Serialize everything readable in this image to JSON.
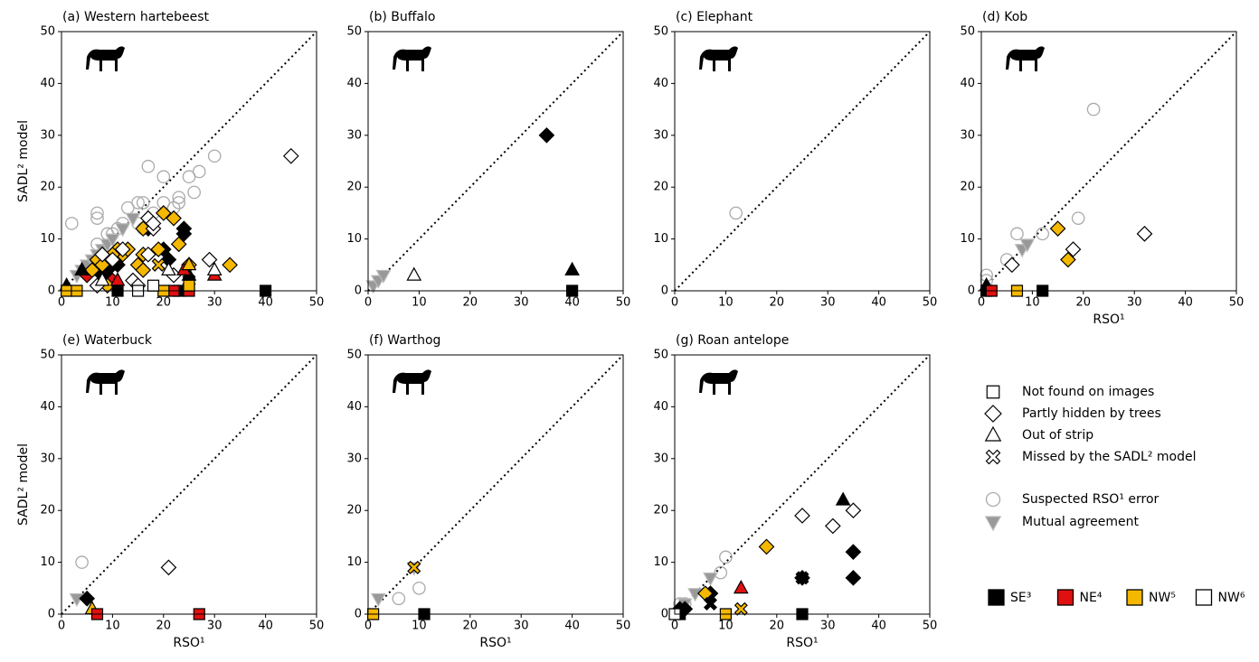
{
  "chart_data": [
    {
      "type": "scatter",
      "title": "(a) Western hartebeest",
      "ylabel": "SADL² model",
      "xlim": [
        0,
        50
      ],
      "ylim": [
        0,
        50
      ],
      "xticks": [
        0,
        10,
        20,
        30,
        40,
        50
      ],
      "yticks": [
        0,
        10,
        20,
        30,
        40,
        50
      ],
      "series": [
        {
          "marker": "circle",
          "color": "none",
          "edgecolor": "#aaaaaa",
          "x": [
            2,
            7,
            7,
            7,
            9,
            10,
            11,
            12,
            13,
            15,
            16,
            17,
            20,
            20,
            22,
            23,
            23,
            25,
            26,
            27,
            30,
            8,
            15,
            16,
            18
          ],
          "values": [
            13,
            15,
            14,
            9,
            11,
            11,
            12,
            13,
            16,
            17,
            17,
            24,
            17,
            22,
            16,
            17,
            18,
            22,
            19,
            23,
            26,
            5,
            13,
            12,
            15
          ]
        },
        {
          "marker": "triangle_down",
          "color": "#999999",
          "edgecolor": "#bbbbbb",
          "x": [
            3,
            4,
            5,
            6,
            7,
            8,
            9,
            10,
            12,
            14
          ],
          "values": [
            3,
            4,
            5,
            6,
            7,
            8,
            9,
            10,
            12,
            14
          ]
        },
        {
          "marker": "diamond",
          "color": "#000000",
          "edgecolor": "#000000",
          "x": [
            9,
            11,
            17,
            20,
            21,
            24,
            24,
            8
          ],
          "values": [
            4,
            5,
            12,
            8,
            6,
            11,
            12,
            3
          ]
        },
        {
          "marker": "diamond",
          "color": "#e01010",
          "edgecolor": "#000000",
          "x": [
            5,
            10
          ],
          "values": [
            3,
            2
          ]
        },
        {
          "marker": "diamond",
          "color": "#f5b800",
          "edgecolor": "#000000",
          "x": [
            6,
            7,
            8,
            9,
            11,
            12,
            13,
            15,
            16,
            16,
            16,
            19,
            20,
            22,
            23,
            25,
            33,
            10
          ],
          "values": [
            4,
            6,
            5,
            1,
            8,
            7,
            8,
            5,
            4,
            7,
            12,
            8,
            15,
            14,
            9,
            5,
            5,
            7
          ]
        },
        {
          "marker": "diamond",
          "color": "#ffffff",
          "edgecolor": "#000000",
          "x": [
            8,
            10,
            12,
            14,
            15,
            17,
            17,
            18,
            18,
            22,
            29,
            45,
            7
          ],
          "values": [
            7,
            6,
            8,
            2,
            1,
            7,
            14,
            12,
            13,
            3,
            6,
            26,
            1
          ]
        },
        {
          "marker": "triangle",
          "color": "#000000",
          "edgecolor": "#000000",
          "x": [
            1,
            4,
            25
          ],
          "values": [
            1,
            4,
            3
          ]
        },
        {
          "marker": "triangle",
          "color": "#e01010",
          "edgecolor": "#000000",
          "x": [
            11,
            24,
            30
          ],
          "values": [
            2,
            4,
            3
          ]
        },
        {
          "marker": "triangle",
          "color": "#f5b800",
          "edgecolor": "#000000",
          "x": [
            25
          ],
          "values": [
            5
          ]
        },
        {
          "marker": "triangle",
          "color": "#ffffff",
          "edgecolor": "#000000",
          "x": [
            21,
            30,
            8
          ],
          "values": [
            4,
            4,
            2
          ]
        },
        {
          "marker": "x",
          "color": "#f5b800",
          "edgecolor": "#000000",
          "x": [
            19
          ],
          "values": [
            5
          ]
        },
        {
          "marker": "x",
          "color": "#000000",
          "edgecolor": "#000000",
          "x": [
            25
          ],
          "values": [
            2
          ]
        },
        {
          "marker": "square",
          "color": "#000000",
          "edgecolor": "#000000",
          "x": [
            11,
            23,
            40
          ],
          "values": [
            0,
            0,
            0
          ]
        },
        {
          "marker": "square",
          "color": "#e01010",
          "edgecolor": "#000000",
          "x": [
            22,
            25
          ],
          "values": [
            0,
            0
          ]
        },
        {
          "marker": "square",
          "color": "#f5b800",
          "edgecolor": "#000000",
          "x": [
            1,
            3,
            20,
            25
          ],
          "values": [
            0,
            0,
            0,
            1
          ]
        },
        {
          "marker": "square",
          "color": "#ffffff",
          "edgecolor": "#000000",
          "x": [
            18,
            15
          ],
          "values": [
            1,
            0
          ]
        }
      ]
    },
    {
      "type": "scatter",
      "title": "(b) Buffalo",
      "xlim": [
        0,
        50
      ],
      "ylim": [
        0,
        50
      ],
      "xticks": [
        0,
        10,
        20,
        30,
        40,
        50
      ],
      "yticks": [
        0,
        10,
        20,
        30,
        40,
        50
      ],
      "series": [
        {
          "marker": "triangle_down",
          "color": "#999999",
          "edgecolor": "#bbbbbb",
          "x": [
            1,
            2,
            3
          ],
          "values": [
            1,
            2,
            3
          ]
        },
        {
          "marker": "diamond",
          "color": "#000000",
          "edgecolor": "#000000",
          "x": [
            35
          ],
          "values": [
            30
          ]
        },
        {
          "marker": "triangle",
          "color": "#ffffff",
          "edgecolor": "#000000",
          "x": [
            9
          ],
          "values": [
            3
          ]
        },
        {
          "marker": "triangle",
          "color": "#000000",
          "edgecolor": "#000000",
          "x": [
            40
          ],
          "values": [
            4
          ]
        },
        {
          "marker": "square",
          "color": "#000000",
          "edgecolor": "#000000",
          "x": [
            40
          ],
          "values": [
            0
          ]
        }
      ]
    },
    {
      "type": "scatter",
      "title": "(c) Elephant",
      "xlim": [
        0,
        50
      ],
      "ylim": [
        0,
        50
      ],
      "xticks": [
        0,
        10,
        20,
        30,
        40,
        50
      ],
      "yticks": [
        0,
        10,
        20,
        30,
        40,
        50
      ],
      "series": [
        {
          "marker": "circle",
          "color": "none",
          "edgecolor": "#aaaaaa",
          "x": [
            12
          ],
          "values": [
            15
          ]
        }
      ]
    },
    {
      "type": "scatter",
      "title": "(d) Kob",
      "xlabel": "RSO¹",
      "xlim": [
        0,
        50
      ],
      "ylim": [
        0,
        50
      ],
      "xticks": [
        0,
        10,
        20,
        30,
        40,
        50
      ],
      "yticks": [
        0,
        10,
        20,
        30,
        40,
        50
      ],
      "series": [
        {
          "marker": "circle",
          "color": "none",
          "edgecolor": "#aaaaaa",
          "x": [
            22,
            19,
            7,
            12,
            5,
            1,
            1
          ],
          "values": [
            35,
            14,
            11,
            11,
            6,
            3,
            2
          ]
        },
        {
          "marker": "triangle_down",
          "color": "#999999",
          "edgecolor": "#bbbbbb",
          "x": [
            8,
            9
          ],
          "values": [
            8,
            9
          ]
        },
        {
          "marker": "diamond",
          "color": "#ffffff",
          "edgecolor": "#000000",
          "x": [
            6,
            18,
            32
          ],
          "values": [
            5,
            8,
            11
          ]
        },
        {
          "marker": "diamond",
          "color": "#f5b800",
          "edgecolor": "#000000",
          "x": [
            15,
            17
          ],
          "values": [
            12,
            6
          ]
        },
        {
          "marker": "triangle",
          "color": "#000000",
          "edgecolor": "#000000",
          "x": [
            1
          ],
          "values": [
            1
          ]
        },
        {
          "marker": "square",
          "color": "#000000",
          "edgecolor": "#000000",
          "x": [
            12,
            1
          ],
          "values": [
            0,
            0
          ]
        },
        {
          "marker": "square",
          "color": "#e01010",
          "edgecolor": "#000000",
          "x": [
            2
          ],
          "values": [
            0
          ]
        },
        {
          "marker": "square",
          "color": "#f5b800",
          "edgecolor": "#000000",
          "x": [
            7
          ],
          "values": [
            0
          ]
        }
      ]
    },
    {
      "type": "scatter",
      "title": "(e) Waterbuck",
      "xlabel": "RSO¹",
      "ylabel": "SADL² model",
      "xlim": [
        0,
        50
      ],
      "ylim": [
        0,
        50
      ],
      "xticks": [
        0,
        10,
        20,
        30,
        40,
        50
      ],
      "yticks": [
        0,
        10,
        20,
        30,
        40,
        50
      ],
      "series": [
        {
          "marker": "circle",
          "color": "none",
          "edgecolor": "#aaaaaa",
          "x": [
            4
          ],
          "values": [
            10
          ]
        },
        {
          "marker": "triangle_down",
          "color": "#999999",
          "edgecolor": "#bbbbbb",
          "x": [
            3
          ],
          "values": [
            3
          ]
        },
        {
          "marker": "diamond",
          "color": "#000000",
          "edgecolor": "#000000",
          "x": [
            5
          ],
          "values": [
            3
          ]
        },
        {
          "marker": "diamond",
          "color": "#ffffff",
          "edgecolor": "#000000",
          "x": [
            21
          ],
          "values": [
            9
          ]
        },
        {
          "marker": "triangle",
          "color": "#f5b800",
          "edgecolor": "#000000",
          "x": [
            6
          ],
          "values": [
            1
          ]
        },
        {
          "marker": "square",
          "color": "#e01010",
          "edgecolor": "#000000",
          "x": [
            7,
            27
          ],
          "values": [
            0,
            0
          ]
        }
      ]
    },
    {
      "type": "scatter",
      "title": "(f) Warthog",
      "xlabel": "RSO¹",
      "xlim": [
        0,
        50
      ],
      "ylim": [
        0,
        50
      ],
      "xticks": [
        0,
        10,
        20,
        30,
        40,
        50
      ],
      "yticks": [
        0,
        10,
        20,
        30,
        40,
        50
      ],
      "series": [
        {
          "marker": "circle",
          "color": "none",
          "edgecolor": "#aaaaaa",
          "x": [
            6,
            10
          ],
          "values": [
            3,
            5
          ]
        },
        {
          "marker": "triangle_down",
          "color": "#999999",
          "edgecolor": "#bbbbbb",
          "x": [
            2,
            9
          ],
          "values": [
            3,
            9
          ]
        },
        {
          "marker": "x",
          "color": "#f5b800",
          "edgecolor": "#000000",
          "x": [
            9
          ],
          "values": [
            9
          ]
        },
        {
          "marker": "square",
          "color": "#f5b800",
          "edgecolor": "#000000",
          "x": [
            1
          ],
          "values": [
            0
          ]
        },
        {
          "marker": "square",
          "color": "#000000",
          "edgecolor": "#000000",
          "x": [
            11
          ],
          "values": [
            0
          ]
        }
      ]
    },
    {
      "type": "scatter",
      "title": "(g) Roan antelope",
      "xlabel": "RSO¹",
      "xlim": [
        0,
        50
      ],
      "ylim": [
        0,
        50
      ],
      "xticks": [
        0,
        10,
        20,
        30,
        40,
        50
      ],
      "yticks": [
        0,
        10,
        20,
        30,
        40,
        50
      ],
      "series": [
        {
          "marker": "circle",
          "color": "none",
          "edgecolor": "#aaaaaa",
          "x": [
            1,
            2,
            9,
            10
          ],
          "values": [
            2,
            2,
            8,
            11
          ]
        },
        {
          "marker": "triangle_down",
          "color": "#999999",
          "edgecolor": "#bbbbbb",
          "x": [
            2,
            4,
            7
          ],
          "values": [
            2,
            4,
            7
          ]
        },
        {
          "marker": "diamond",
          "color": "#ffffff",
          "edgecolor": "#000000",
          "x": [
            25,
            31,
            35
          ],
          "values": [
            19,
            17,
            20
          ]
        },
        {
          "marker": "diamond",
          "color": "#000000",
          "edgecolor": "#000000",
          "x": [
            35,
            35,
            25,
            7,
            1,
            2
          ],
          "values": [
            12,
            7,
            7,
            4,
            1,
            1
          ]
        },
        {
          "marker": "diamond",
          "color": "#f5b800",
          "edgecolor": "#000000",
          "x": [
            6,
            18
          ],
          "values": [
            4,
            13
          ]
        },
        {
          "marker": "triangle",
          "color": "#e01010",
          "edgecolor": "#000000",
          "x": [
            13
          ],
          "values": [
            5
          ]
        },
        {
          "marker": "triangle",
          "color": "#000000",
          "edgecolor": "#000000",
          "x": [
            33
          ],
          "values": [
            22
          ]
        },
        {
          "marker": "x",
          "color": "#f5b800",
          "edgecolor": "#000000",
          "x": [
            13
          ],
          "values": [
            1
          ]
        },
        {
          "marker": "x",
          "color": "#000000",
          "edgecolor": "#000000",
          "x": [
            7,
            25
          ],
          "values": [
            2,
            7
          ]
        },
        {
          "marker": "square",
          "color": "#000000",
          "edgecolor": "#000000",
          "x": [
            25,
            1
          ],
          "values": [
            0,
            0
          ]
        },
        {
          "marker": "square",
          "color": "#f5b800",
          "edgecolor": "#000000",
          "x": [
            10
          ],
          "values": [
            0
          ]
        },
        {
          "marker": "square",
          "color": "#ffffff",
          "edgecolor": "#000000",
          "x": [
            0
          ],
          "values": [
            0
          ]
        }
      ]
    }
  ],
  "legend": {
    "markers": [
      {
        "label": "Not found on images",
        "marker": "square",
        "color": "#ffffff",
        "edgecolor": "#000000"
      },
      {
        "label": "Partly hidden by trees",
        "marker": "diamond",
        "color": "#ffffff",
        "edgecolor": "#000000"
      },
      {
        "label": "Out of strip",
        "marker": "triangle",
        "color": "#ffffff",
        "edgecolor": "#000000"
      },
      {
        "label": "Missed by the SADL² model",
        "marker": "x",
        "color": "#ffffff",
        "edgecolor": "#000000"
      },
      {
        "label": "Suspected RSO¹ error",
        "marker": "circle",
        "color": "none",
        "edgecolor": "#aaaaaa"
      },
      {
        "label": "Mutual agreement",
        "marker": "triangle_down",
        "color": "#999999",
        "edgecolor": "#bbbbbb"
      }
    ],
    "colors": [
      {
        "label": "SE³",
        "color": "#000000"
      },
      {
        "label": "NE⁴",
        "color": "#e01010"
      },
      {
        "label": "NW⁵",
        "color": "#f5b800"
      },
      {
        "label": "NW⁶",
        "color": "#ffffff"
      }
    ]
  }
}
